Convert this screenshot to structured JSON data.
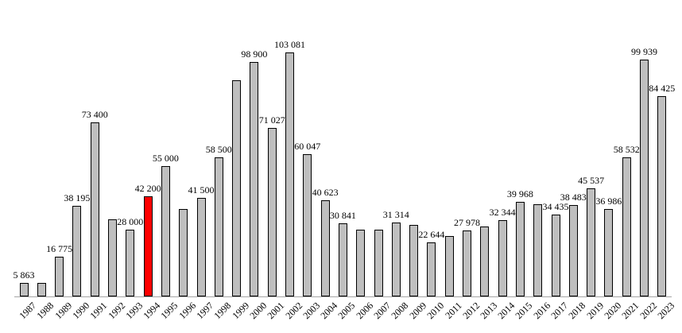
{
  "chart_data": {
    "type": "bar",
    "title": "",
    "xlabel": "",
    "ylabel": "",
    "grid": false,
    "legend": false,
    "y_axis_visible": false,
    "x_tick_rotation_deg": -45,
    "ylim": [
      0,
      110000
    ],
    "categories": [
      "1987",
      "1988",
      "1989",
      "1990",
      "1991",
      "1992",
      "1993",
      "1994",
      "1995",
      "1996",
      "1997",
      "1998",
      "1999",
      "2000",
      "2001",
      "2002",
      "2003",
      "2004",
      "2005",
      "2006",
      "2007",
      "2008",
      "2009",
      "2010",
      "2011",
      "2012",
      "2013",
      "2014",
      "2015",
      "2016",
      "2017",
      "2018",
      "2019",
      "2020",
      "2021",
      "2022",
      "2023"
    ],
    "values": [
      5863,
      5700,
      16775,
      38195,
      73400,
      32600,
      28000,
      42200,
      55000,
      36900,
      41500,
      58500,
      91200,
      98900,
      71027,
      103081,
      60047,
      40623,
      30841,
      28100,
      28100,
      31314,
      30300,
      22644,
      25600,
      27978,
      29500,
      32344,
      39968,
      39000,
      34435,
      38483,
      45537,
      36986,
      58532,
      99939,
      84425
    ],
    "data_labels": [
      "5 863",
      null,
      "16 775",
      "38 195",
      "73 400",
      null,
      "28 000",
      "42 200",
      "55 000",
      null,
      "41 500",
      "58 500",
      null,
      "98 900",
      "71 027",
      "103 081",
      "60 047",
      "40 623",
      "30 841",
      null,
      null,
      "31 314",
      null,
      "22 644",
      null,
      "27 978",
      null,
      "32 344",
      "39 968",
      null,
      "34 435",
      "38 483",
      "45 537",
      "36 986",
      "58 532",
      "99 939",
      "84 425"
    ],
    "unlabeled_years_value_estimated": [
      "1988",
      "1992",
      "1996",
      "1999",
      "2006",
      "2007",
      "2009",
      "2011",
      "2013",
      "2016"
    ],
    "highlight": {
      "year": "1994",
      "color": "#ff0000"
    },
    "colors": {
      "bar_fill": "#bfbfbf",
      "bar_border": "#000000",
      "axis_line": "#a6a6a6",
      "label_text": "#000000"
    }
  }
}
